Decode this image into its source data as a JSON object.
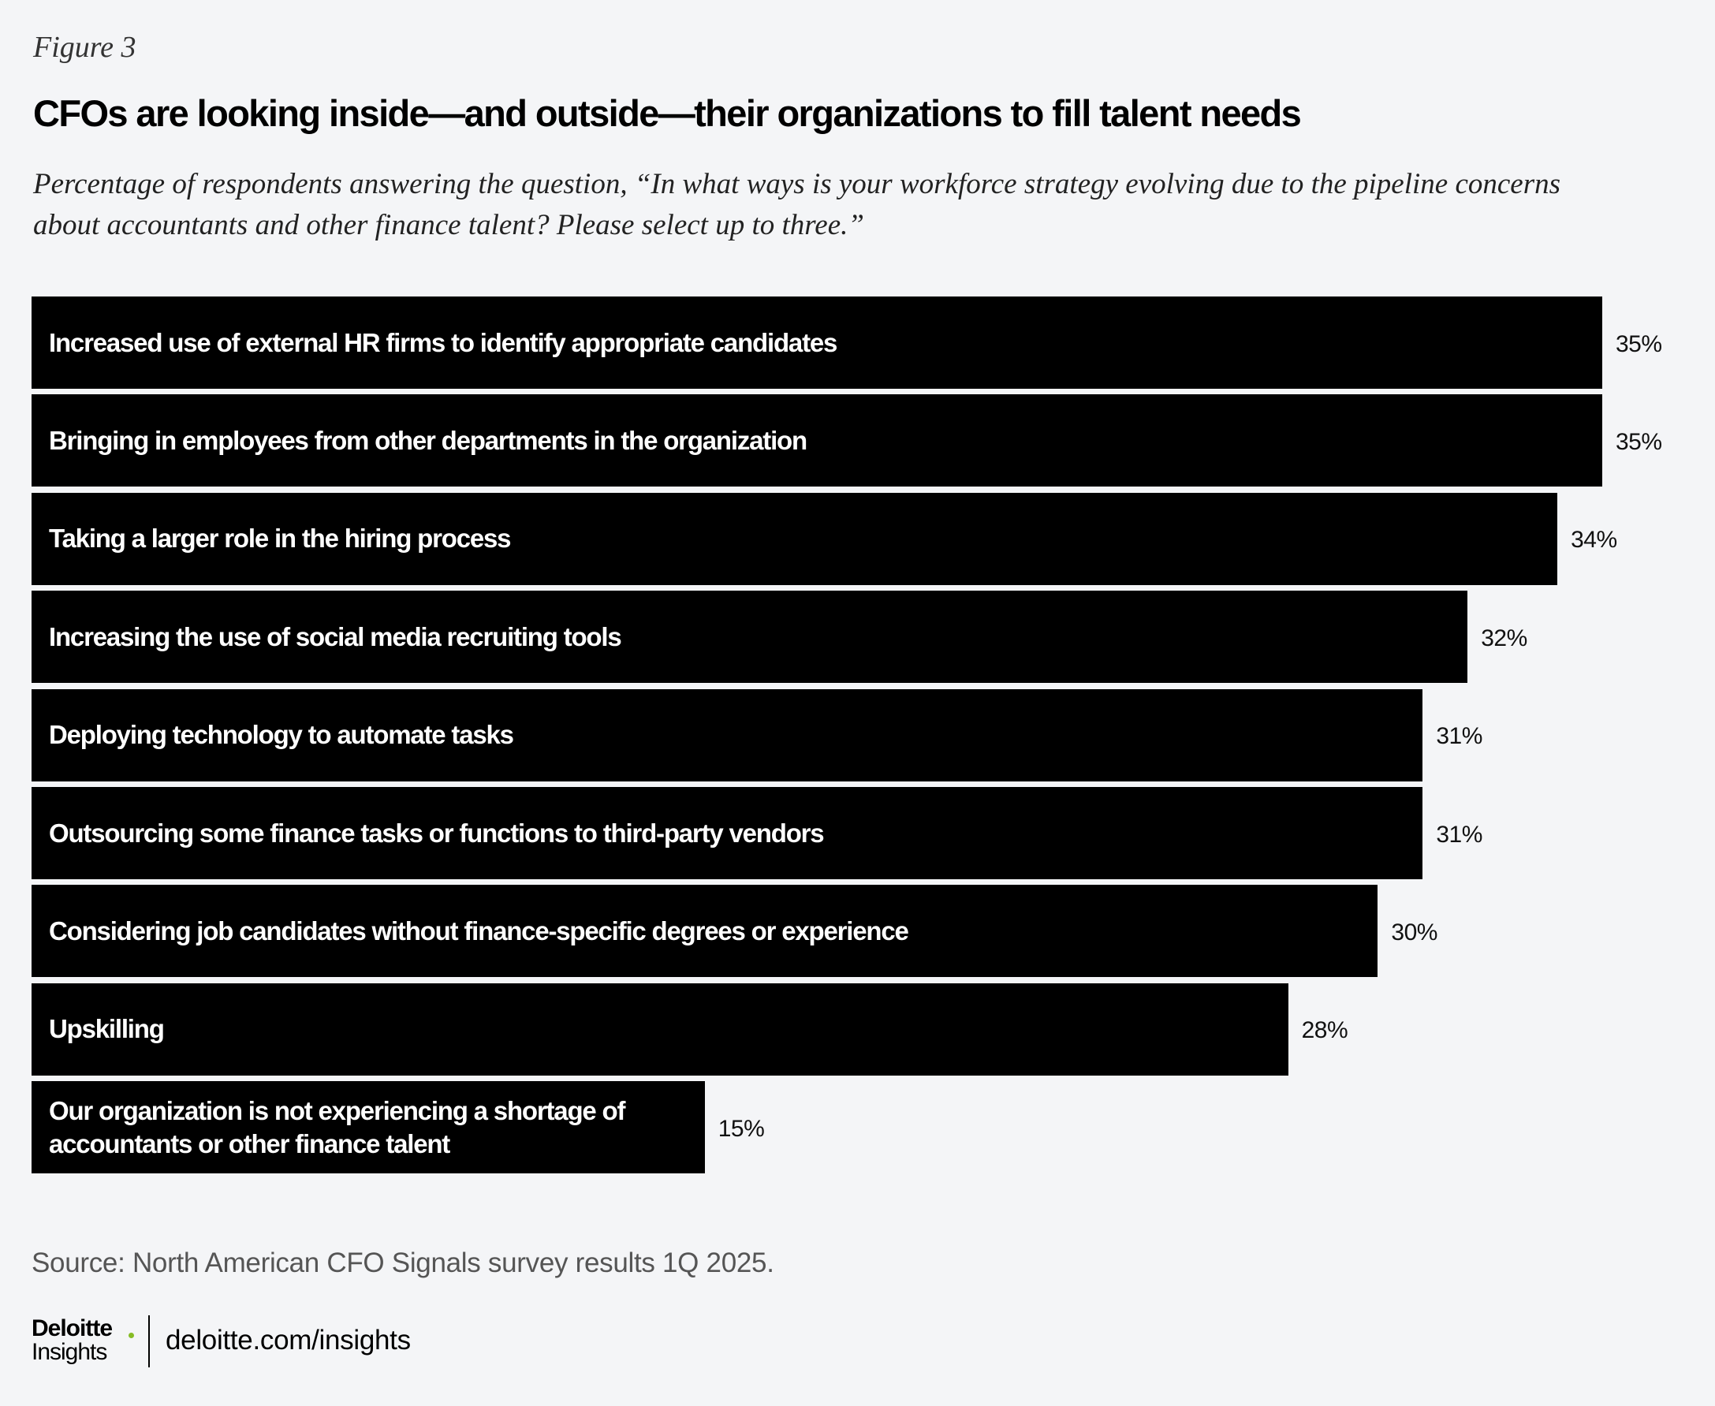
{
  "chart_data": {
    "type": "bar",
    "orientation": "horizontal",
    "figure_label": "Figure 3",
    "title": "CFOs are looking inside—and outside—their organizations to fill talent needs",
    "subtitle": "Percentage of respondents answering the question, “In what ways is your workforce strategy evolving due to the pipeline concerns about accountants and other finance talent? Please select up to three.”",
    "categories": [
      "Increased use of external HR firms to identify appropriate candidates",
      "Bringing in employees from other departments in the organization",
      "Taking a larger role in the hiring process",
      "Increasing the use of social media recruiting tools",
      "Deploying technology to automate tasks",
      "Outsourcing some finance tasks or functions to third-party vendors",
      "Considering job candidates without finance-specific degrees or experience",
      "Upskilling",
      "Our organization is not experiencing a shortage of accountants or other finance talent"
    ],
    "values": [
      35,
      35,
      34,
      32,
      31,
      31,
      30,
      28,
      15
    ],
    "value_labels": [
      "35%",
      "35%",
      "34%",
      "32%",
      "31%",
      "31%",
      "30%",
      "28%",
      "15%"
    ],
    "color": "#000000",
    "source": "Source: North American CFO Signals survey results 1Q 2025.",
    "brand": "Deloitte",
    "brand_sub": "Insights",
    "url": "deloitte.com/insights"
  }
}
